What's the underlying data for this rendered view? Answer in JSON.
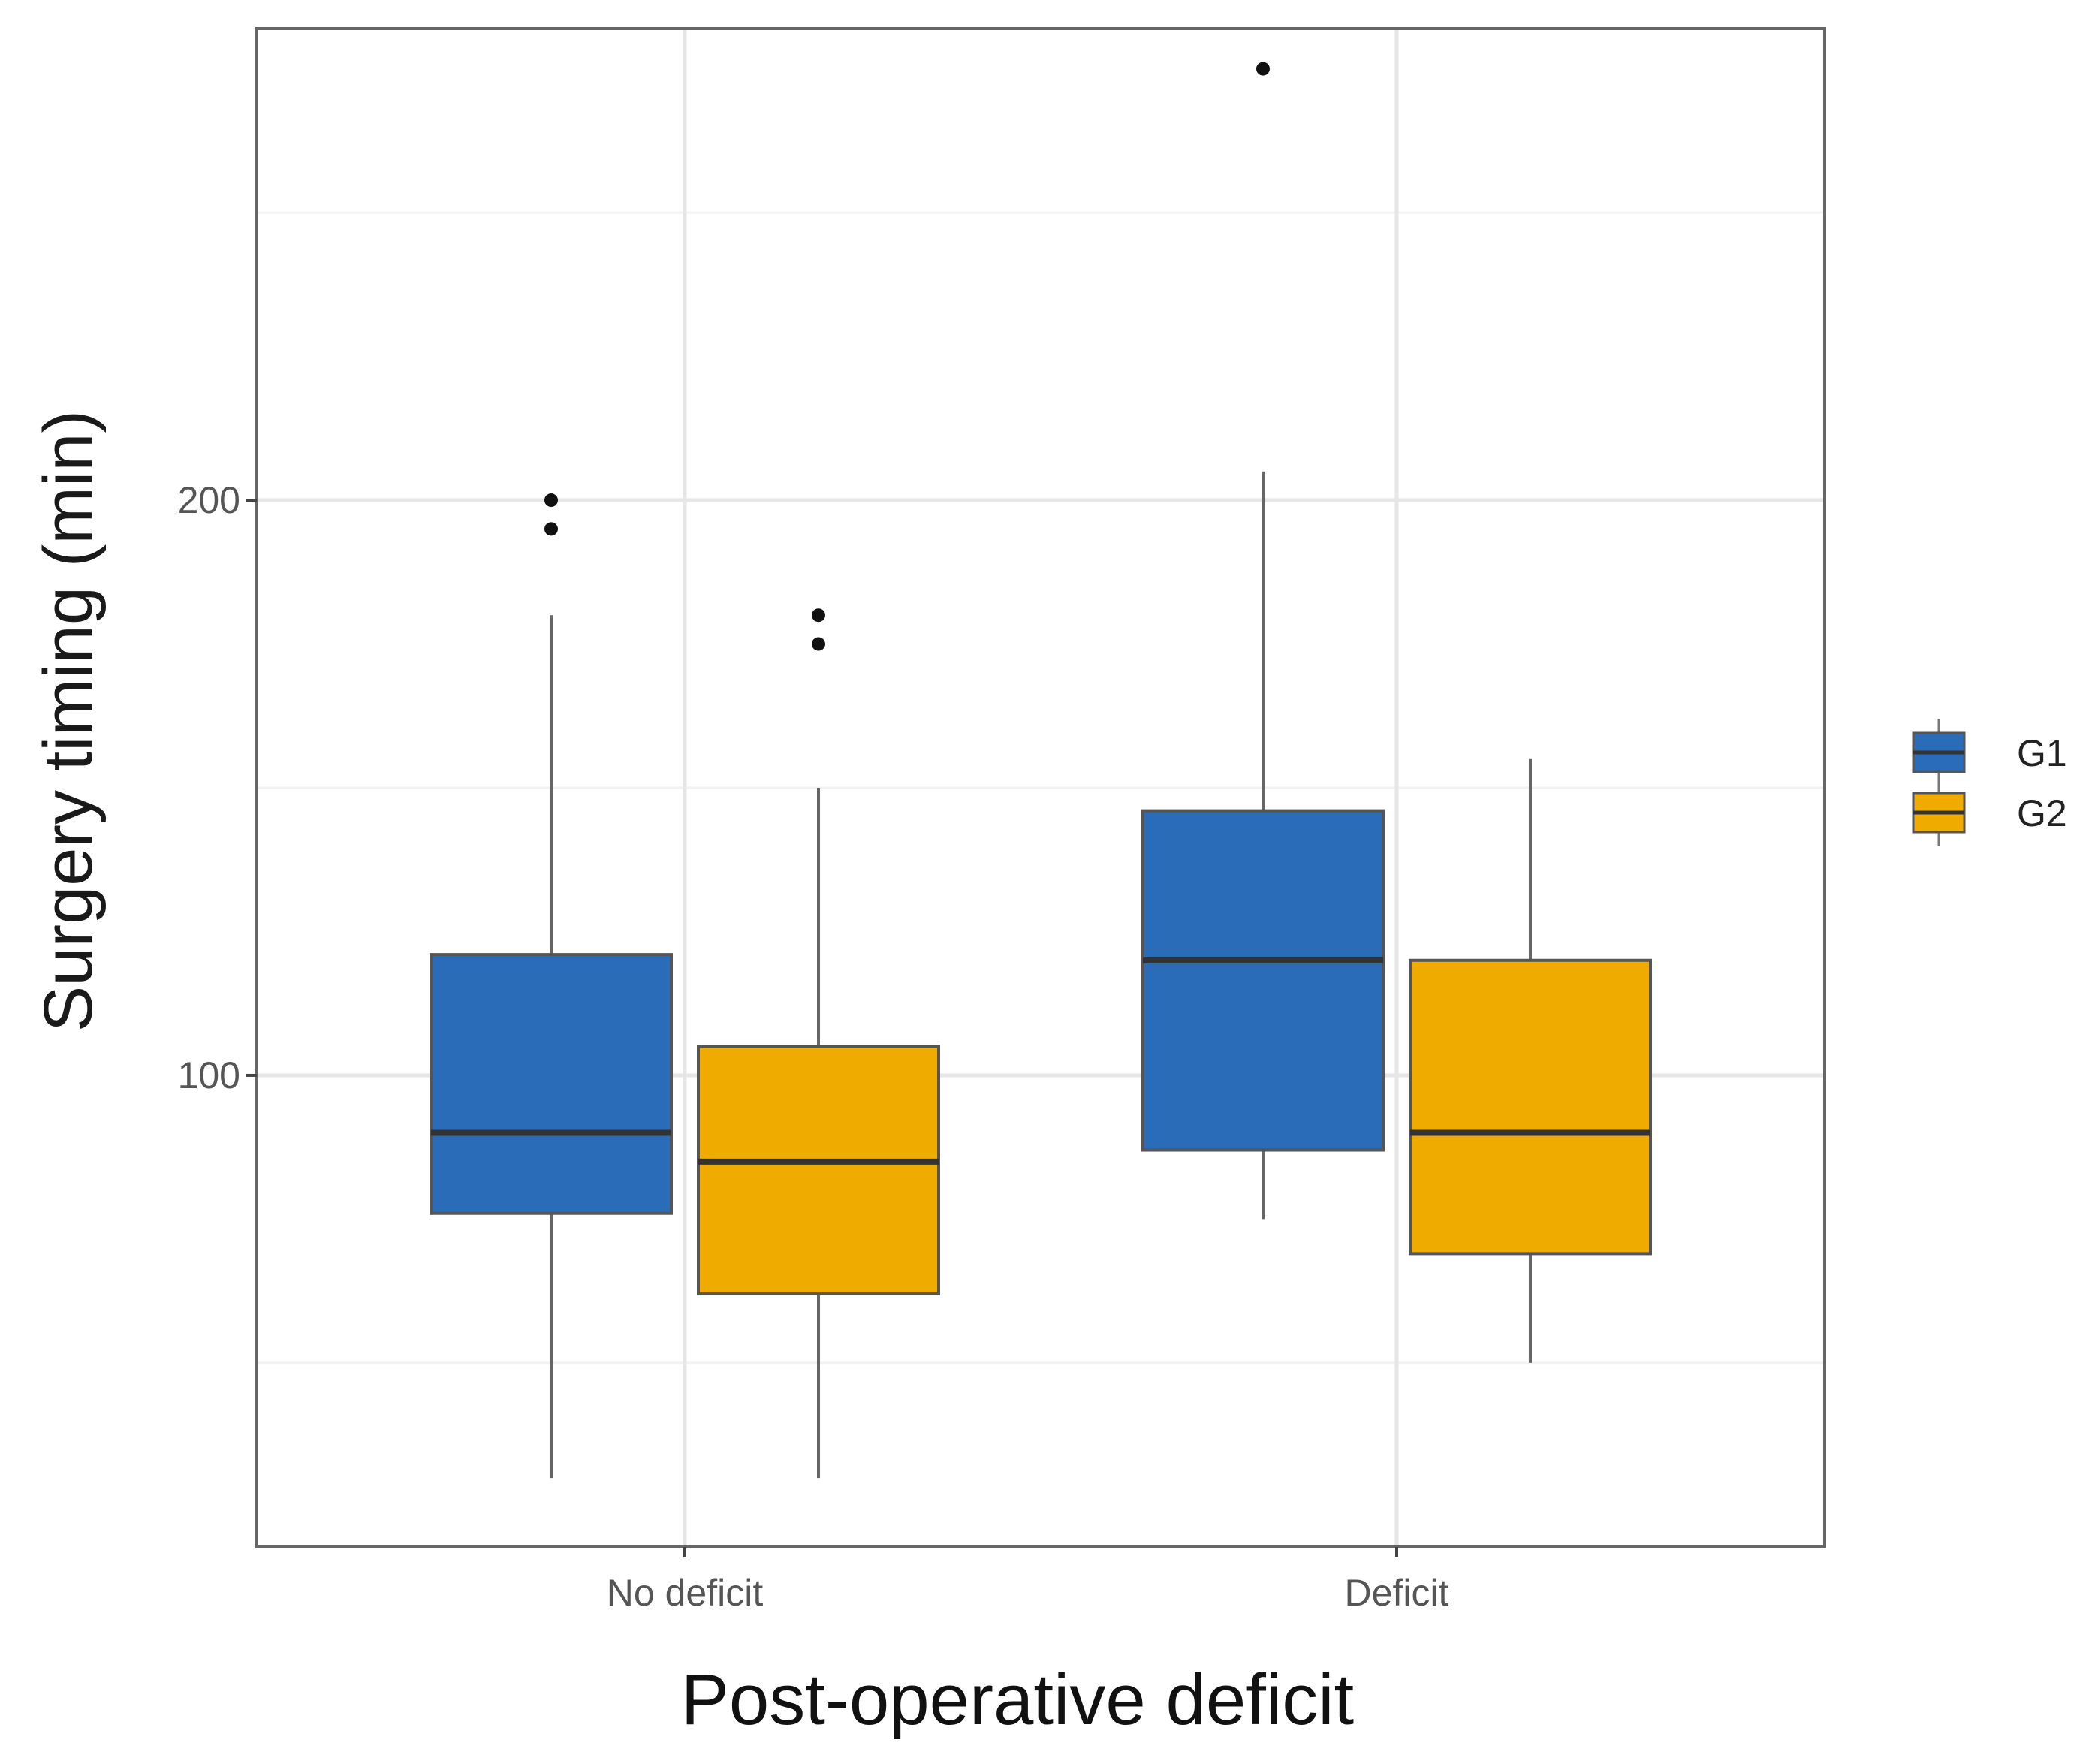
{
  "chart_data": {
    "type": "boxplot",
    "title": "",
    "xlabel": "Post-operative deficit",
    "ylabel": "Surgery timing (min)",
    "categories": [
      "No deficit",
      "Deficit"
    ],
    "ylim": [
      18,
      282
    ],
    "yticks": [
      100,
      200
    ],
    "grid": true,
    "legend_position": "right",
    "series": [
      {
        "name": "G1",
        "color": "#2b6cb8",
        "boxes": [
          {
            "category": "No deficit",
            "whisker_low": 30,
            "q1": 76,
            "median": 90,
            "q3": 121,
            "whisker_high": 180,
            "outliers": [
              195,
              200
            ]
          },
          {
            "category": "Deficit",
            "whisker_low": 75,
            "q1": 87,
            "median": 120,
            "q3": 146,
            "whisker_high": 205,
            "outliers": [
              275
            ]
          }
        ]
      },
      {
        "name": "G2",
        "color": "#f0ab00",
        "boxes": [
          {
            "category": "No deficit",
            "whisker_low": 30,
            "q1": 62,
            "median": 85,
            "q3": 105,
            "whisker_high": 150,
            "outliers": [
              175,
              180
            ]
          },
          {
            "category": "Deficit",
            "whisker_low": 50,
            "q1": 69,
            "median": 90,
            "q3": 120,
            "whisker_high": 155,
            "outliers": []
          }
        ]
      }
    ]
  }
}
